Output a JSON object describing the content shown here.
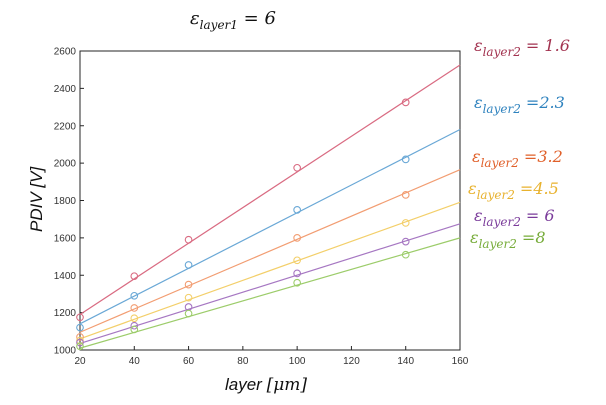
{
  "chart_data": {
    "type": "line",
    "title": "εlayer1 = 6",
    "xlabel": "layer [μm]",
    "ylabel": "PDIV [V]",
    "xlim": [
      20,
      160
    ],
    "ylim": [
      1000,
      2600
    ],
    "xticks": [
      "20",
      "40",
      "60",
      "80",
      "100",
      "120",
      "140",
      "160"
    ],
    "yticks": [
      "1000",
      "1200",
      "1400",
      "1600",
      "1800",
      "2000",
      "2200",
      "2400",
      "2600"
    ],
    "grid": false,
    "legend_placement": "right",
    "series": [
      {
        "name": "εlayer2 = 1.6",
        "label_color": "#a2324f",
        "line_color": "#d96b82",
        "fit": [
          [
            20,
            1190
          ],
          [
            160,
            2525
          ]
        ],
        "points": [
          [
            20,
            1175
          ],
          [
            40,
            1395
          ],
          [
            60,
            1590
          ],
          [
            100,
            1975
          ],
          [
            140,
            2325
          ]
        ]
      },
      {
        "name": "εlayer2 =2.3",
        "label_color": "#2e82be",
        "line_color": "#6aa8d6",
        "fit": [
          [
            20,
            1140
          ],
          [
            160,
            2180
          ]
        ],
        "points": [
          [
            20,
            1120
          ],
          [
            40,
            1290
          ],
          [
            60,
            1455
          ],
          [
            100,
            1750
          ],
          [
            140,
            2020
          ]
        ]
      },
      {
        "name": "εlayer2 =3.2",
        "label_color": "#e0602a",
        "line_color": "#f29d72",
        "fit": [
          [
            20,
            1095
          ],
          [
            160,
            1965
          ]
        ],
        "points": [
          [
            20,
            1070
          ],
          [
            40,
            1225
          ],
          [
            60,
            1350
          ],
          [
            100,
            1600
          ],
          [
            140,
            1830
          ]
        ]
      },
      {
        "name": "εlayer2 =4.5",
        "label_color": "#e8b22e",
        "line_color": "#f3cf6a",
        "fit": [
          [
            20,
            1060
          ],
          [
            160,
            1790
          ]
        ],
        "points": [
          [
            20,
            1050
          ],
          [
            40,
            1170
          ],
          [
            60,
            1280
          ],
          [
            100,
            1480
          ],
          [
            140,
            1680
          ]
        ]
      },
      {
        "name": "εlayer2 = 6",
        "label_color": "#7a3b9a",
        "line_color": "#a677c2",
        "fit": [
          [
            20,
            1035
          ],
          [
            160,
            1675
          ]
        ],
        "points": [
          [
            20,
            1040
          ],
          [
            40,
            1130
          ],
          [
            60,
            1230
          ],
          [
            100,
            1410
          ],
          [
            140,
            1580
          ]
        ]
      },
      {
        "name": "εlayer2 =8",
        "label_color": "#77ac3a",
        "line_color": "#9ccc6a",
        "fit": [
          [
            20,
            1010
          ],
          [
            160,
            1600
          ]
        ],
        "points": [
          [
            20,
            1020
          ],
          [
            40,
            1110
          ],
          [
            60,
            1195
          ],
          [
            100,
            1360
          ],
          [
            140,
            1510
          ]
        ]
      }
    ]
  },
  "title_parts": {
    "base": "ε",
    "sub": "layer1",
    "rest": " = 6"
  },
  "xlabel_parts": {
    "main": "layer ",
    "unit": "[μm]"
  },
  "legend_parts": [
    {
      "base": "ε",
      "sub": "layer2",
      "rest": " = 1.6"
    },
    {
      "base": "ε",
      "sub": "layer2",
      "rest": " =2.3"
    },
    {
      "base": "ε",
      "sub": "layer2",
      "rest": " =3.2"
    },
    {
      "base": "ε",
      "sub": "layer2",
      "rest": " =4.5"
    },
    {
      "base": "ε",
      "sub": "layer2",
      "rest": " = 6"
    },
    {
      "base": "ε",
      "sub": "layer2",
      "rest": " =8"
    }
  ]
}
